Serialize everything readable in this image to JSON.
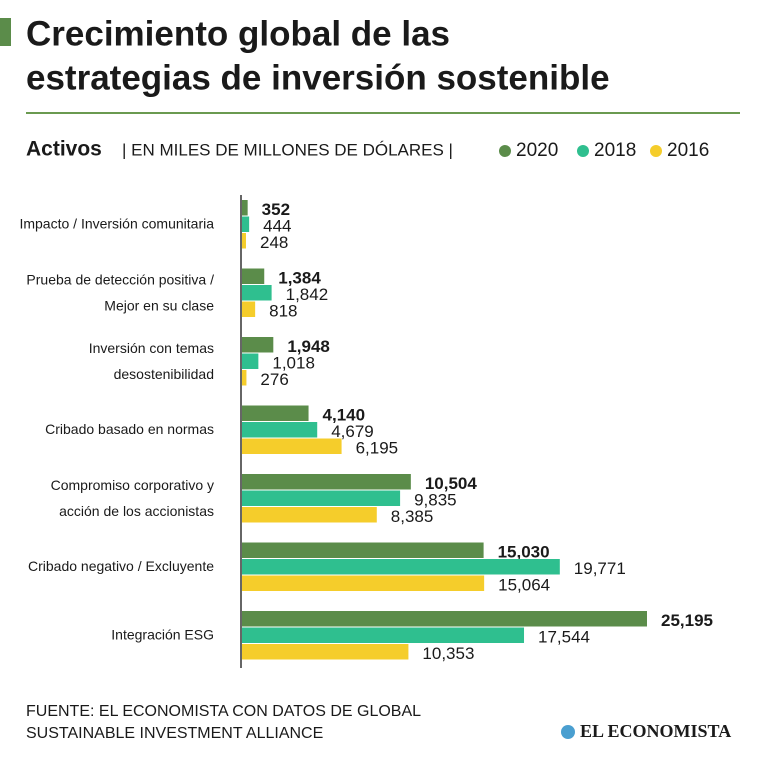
{
  "chart_data": {
    "type": "hbar",
    "title": [
      "Crecimiento global de las",
      "estrategias de inversión sostenible"
    ],
    "subtitle": "Activos",
    "unit_label": "| EN MILES DE MILLONES DE DÓLARES |",
    "categories": [
      "Impacto / Inversión comunitaria",
      "Prueba de detección positiva /\nMejor en su clase",
      "Inversión con temas\ndesostenibilidad",
      "Cribado basado en normas",
      "Compromiso corporativo y\nacción de los accionistas",
      "Cribado negativo / Excluyente",
      "Integración ESG"
    ],
    "series": [
      {
        "name": "2020",
        "color": "#5b8c4a",
        "values": [
          352,
          1384,
          1948,
          4140,
          10504,
          15030,
          25195
        ],
        "value_labels": [
          "352",
          "1,384",
          "1,948",
          "4,140",
          "10,504",
          "15,030",
          "25,195"
        ]
      },
      {
        "name": "2018",
        "color": "#2fbf8f",
        "values": [
          444,
          1842,
          1018,
          4679,
          9835,
          19771,
          17544
        ],
        "value_labels": [
          "444",
          "1,842",
          "1,018",
          "4,679",
          "9,835",
          "19,771",
          "17,544"
        ]
      },
      {
        "name": "2016",
        "color": "#f5cd2b",
        "values": [
          248,
          818,
          276,
          6195,
          8385,
          15064,
          10353
        ],
        "value_labels": [
          "248",
          "818",
          "276",
          "6,195",
          "8,385",
          "15,064",
          "10,353"
        ]
      }
    ],
    "source": [
      "FUENTE: EL ECONOMISTA CON DATOS DE GLOBAL",
      "SUSTAINABLE INVESTMENT ALLIANCE"
    ],
    "brand": "EL ECONOMISTA"
  }
}
